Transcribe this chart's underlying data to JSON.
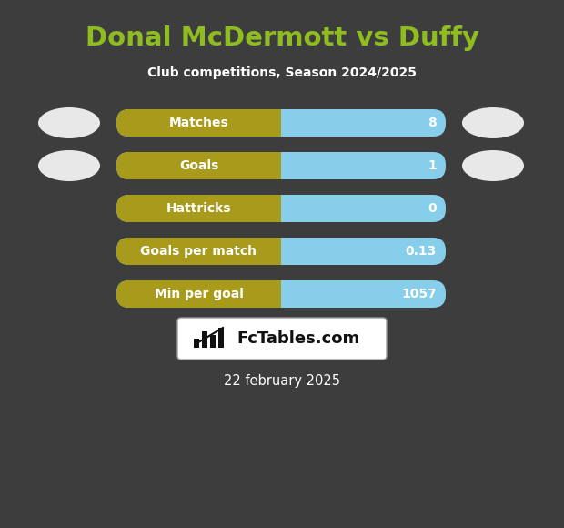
{
  "title": "Donal McDermott vs Duffy",
  "subtitle": "Club competitions, Season 2024/2025",
  "date_text": "22 february 2025",
  "background_color": "#3d3d3d",
  "title_color": "#8fbc20",
  "subtitle_color": "#ffffff",
  "date_color": "#ffffff",
  "rows": [
    {
      "label": "Matches",
      "value": "8"
    },
    {
      "label": "Goals",
      "value": "1"
    },
    {
      "label": "Hattricks",
      "value": "0"
    },
    {
      "label": "Goals per match",
      "value": "0.13"
    },
    {
      "label": "Min per goal",
      "value": "1057"
    }
  ],
  "bar_left_color": "#a89a1a",
  "bar_right_color": "#87ceeb",
  "bar_label_color": "#ffffff",
  "bar_value_color": "#ffffff",
  "ellipse_color": "#e8e8e8",
  "logo_box_color": "#ffffff",
  "logo_text": "FcTables.com",
  "logo_text_color": "#111111",
  "figsize": [
    6.2,
    5.8
  ],
  "dpi": 100
}
